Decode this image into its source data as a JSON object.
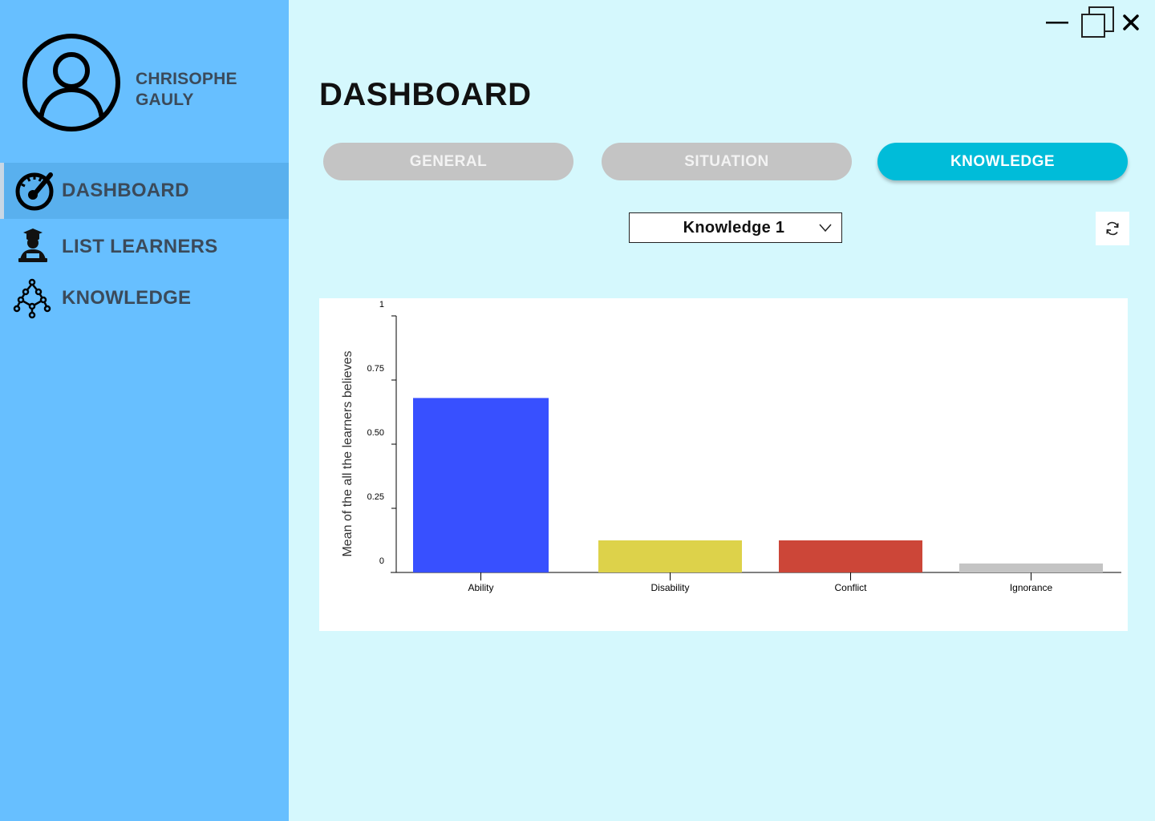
{
  "user": {
    "first_name": "CHRISOPHE",
    "last_name": "GAULY",
    "icon": "user-avatar-icon"
  },
  "sidebar": {
    "items": [
      {
        "label": "DASHBOARD",
        "icon": "dashboard-gauge-icon",
        "active": true
      },
      {
        "label": "LIST LEARNERS",
        "icon": "graduate-icon",
        "active": false
      },
      {
        "label": "KNOWLEDGE",
        "icon": "knowledge-graph-icon",
        "active": false
      }
    ]
  },
  "window": {
    "minimize_icon": "minimize-icon",
    "maximize_icon": "restore-icon",
    "close_icon": "close-icon"
  },
  "main": {
    "title": "DASHBOARD",
    "tabs": [
      {
        "label": "GENERAL",
        "active": false
      },
      {
        "label": "SITUATION",
        "active": false
      },
      {
        "label": "KNOWLEDGE",
        "active": true
      }
    ],
    "knowledge_select": {
      "value": "Knowledge 1"
    },
    "refresh_icon": "refresh-icon"
  },
  "colors": {
    "sidebar_bg": "#67bfff",
    "main_bg": "#d5f8fd",
    "tab_active": "#00bcd9",
    "tab_inactive": "#c4c4c4"
  },
  "chart_data": {
    "type": "bar",
    "categories": [
      "Ability",
      "Disability",
      "Conflict",
      "Ignorance"
    ],
    "values": [
      0.68,
      0.125,
      0.125,
      0.035
    ],
    "colors": [
      "#3850ff",
      "#ddd24a",
      "#cc4638",
      "#c4c4c4"
    ],
    "ylabel": "Mean of the all the learners believes",
    "xlabel": "",
    "ylim": [
      0,
      1
    ],
    "yticks": [
      {
        "value": 0,
        "label": "0"
      },
      {
        "value": 0.25,
        "label": "0.25"
      },
      {
        "value": 0.5,
        "label": "0.50"
      },
      {
        "value": 0.75,
        "label": "0.75"
      },
      {
        "value": 1,
        "label": "1"
      }
    ],
    "grid": false,
    "legend": "none"
  }
}
